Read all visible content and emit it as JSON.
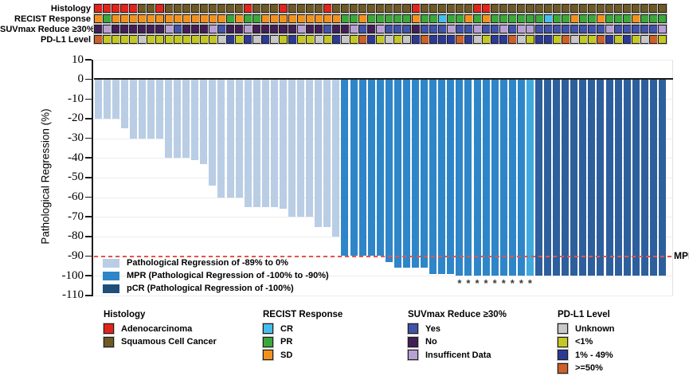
{
  "tracks": {
    "labels": [
      "Histology",
      "RECIST Response",
      "SUVmax Reduce ≥30%",
      "PD-L1 Level"
    ],
    "histology_seq": [
      "A",
      "A",
      "A",
      "A",
      "A",
      "S",
      "S",
      "A",
      "S",
      "S",
      "S",
      "S",
      "S",
      "S",
      "S",
      "S",
      "S",
      "A",
      "S",
      "S",
      "S",
      "A",
      "S",
      "S",
      "S",
      "S",
      "A",
      "S",
      "S",
      "S",
      "S",
      "S",
      "S",
      "S",
      "S",
      "S",
      "A",
      "S",
      "S",
      "S",
      "S",
      "S",
      "S",
      "A",
      "A",
      "S",
      "S",
      "S",
      "S",
      "S",
      "S",
      "S",
      "S",
      "S",
      "S",
      "S",
      "S",
      "S",
      "S",
      "S",
      "S",
      "S",
      "S",
      "S",
      "S"
    ],
    "recist_seq": [
      "S",
      "P",
      "S",
      "S",
      "S",
      "S",
      "S",
      "S",
      "S",
      "S",
      "S",
      "S",
      "S",
      "S",
      "S",
      "P",
      "S",
      "P",
      "P",
      "S",
      "S",
      "S",
      "S",
      "S",
      "S",
      "S",
      "S",
      "S",
      "P",
      "P",
      "S",
      "P",
      "P",
      "P",
      "P",
      "P",
      "S",
      "P",
      "P",
      "C",
      "P",
      "P",
      "S",
      "P",
      "S",
      "P",
      "P",
      "P",
      "P",
      "P",
      "P",
      "C",
      "P",
      "P",
      "S",
      "P",
      "P",
      "S",
      "P",
      "P",
      "P",
      "S",
      "P",
      "P",
      "P"
    ],
    "suvmax_seq": [
      "N",
      "I",
      "N",
      "N",
      "N",
      "N",
      "N",
      "N",
      "I",
      "Y",
      "N",
      "N",
      "N",
      "I",
      "Y",
      "N",
      "N",
      "I",
      "N",
      "N",
      "N",
      "N",
      "N",
      "I",
      "N",
      "N",
      "Y",
      "N",
      "N",
      "I",
      "Y",
      "N",
      "I",
      "Y",
      "Y",
      "Y",
      "N",
      "Y",
      "Y",
      "Y",
      "I",
      "Y",
      "Y",
      "I",
      "Y",
      "Y",
      "I",
      "Y",
      "I",
      "I",
      "Y",
      "Y",
      "Y",
      "Y",
      "Y",
      "Y",
      "Y",
      "Y",
      "I",
      "Y",
      "Y",
      "Y",
      "Y",
      "Y",
      "I"
    ],
    "pdl1_seq": [
      "H",
      "L",
      "L",
      "L",
      "L",
      "U",
      "L",
      "L",
      "L",
      "L",
      "L",
      "L",
      "L",
      "L",
      "U",
      "M",
      "L",
      "M",
      "U",
      "M",
      "U",
      "L",
      "M",
      "L",
      "L",
      "U",
      "L",
      "M",
      "U",
      "L",
      "H",
      "M",
      "L",
      "U",
      "L",
      "U",
      "M",
      "H",
      "M",
      "M",
      "M",
      "H",
      "M",
      "U",
      "L",
      "M",
      "M",
      "H",
      "U",
      "L",
      "M",
      "M",
      "L",
      "H",
      "U",
      "L",
      "L",
      "H",
      "M",
      "L",
      "M",
      "L",
      "U",
      "H",
      "L"
    ],
    "histology_colors": {
      "A": "#e3241b",
      "S": "#6f5a26"
    },
    "recist_colors": {
      "C": "#45beec",
      "P": "#3ba83a",
      "S": "#f2921d"
    },
    "suvmax_colors": {
      "Y": "#4053a8",
      "N": "#421e56",
      "I": "#b7a0d3"
    },
    "pdl1_colors": {
      "U": "#c8c8c8",
      "L": "#c4c824",
      "M": "#2c3a96",
      "H": "#ce6029"
    }
  },
  "chart_data": {
    "type": "bar",
    "title": "",
    "xlabel": "",
    "ylabel": "Pathological Regression (%)",
    "ylim": [
      -110,
      10
    ],
    "yticks": [
      10,
      0,
      -10,
      -20,
      -30,
      -40,
      -50,
      -60,
      -70,
      -80,
      -90,
      -100,
      -110
    ],
    "grid": true,
    "values": [
      -20,
      -20,
      -20,
      -25,
      -30,
      -30,
      -30,
      -30,
      -40,
      -40,
      -40,
      -41,
      -43,
      -54,
      -60,
      -60,
      -60,
      -65,
      -65,
      -65,
      -65,
      -66,
      -70,
      -70,
      -70,
      -75,
      -75,
      -80,
      -90,
      -90,
      -90,
      -90,
      -90,
      -93,
      -96,
      -96,
      -96,
      -96,
      -99,
      -99,
      -99,
      -100,
      -100,
      -100,
      -100,
      -100,
      -100,
      -100,
      -100,
      -100,
      -100,
      -100,
      -100,
      -100,
      -100,
      -100,
      -100,
      -100,
      -100,
      -100,
      -100,
      -100,
      -100,
      -100,
      -100
    ],
    "groups": [
      "reg",
      "reg",
      "reg",
      "reg",
      "reg",
      "reg",
      "reg",
      "reg",
      "reg",
      "reg",
      "reg",
      "reg",
      "reg",
      "reg",
      "reg",
      "reg",
      "reg",
      "reg",
      "reg",
      "reg",
      "reg",
      "reg",
      "reg",
      "reg",
      "reg",
      "reg",
      "reg",
      "reg",
      "mpr",
      "mpr",
      "mpr",
      "mpr",
      "mpr",
      "mpr",
      "mpr",
      "mpr",
      "mpr",
      "mpr",
      "mpr",
      "mpr",
      "mpr",
      "mpr",
      "mpr",
      "mpr",
      "mpr",
      "mpr",
      "mpr",
      "mpr",
      "mpr",
      "cr",
      "pcr",
      "pcr",
      "pcr",
      "pcr",
      "pcr",
      "pcr",
      "pcr",
      "pcr",
      "pcr",
      "pcr",
      "pcr",
      "pcr",
      "pcr",
      "pcr",
      "pcr"
    ],
    "group_colors": {
      "reg": "#b9cde5",
      "mpr": "#2e86c8",
      "cr": "#41a9de",
      "pcr": "#2e5f9d"
    },
    "asterisk_columns": [
      42,
      43,
      44,
      45,
      46,
      47,
      48,
      49,
      50
    ],
    "asterisk_symbol": "*",
    "mpr_line": {
      "y": -90,
      "label": "MPR",
      "color": "#e8524b"
    }
  },
  "plot_legend": [
    {
      "label": "Pathological Regression of -89% to 0%",
      "color": "#b9cde5"
    },
    {
      "label": "MPR (Pathological Regression of -100% to -90%)",
      "color": "#2e86c8"
    },
    {
      "label": "pCR (Pathological Regression of -100%)",
      "color": "#1f4e79"
    }
  ],
  "bottom_legends": [
    {
      "title": "Histology",
      "items": [
        {
          "label": "Adenocarcinoma",
          "color": "#e3241b"
        },
        {
          "label": "Squamous Cell Cancer",
          "color": "#6f5a26"
        }
      ]
    },
    {
      "title": "RECIST Response",
      "items": [
        {
          "label": "CR",
          "color": "#45beec"
        },
        {
          "label": "PR",
          "color": "#3ba83a"
        },
        {
          "label": "SD",
          "color": "#f2921d"
        }
      ]
    },
    {
      "title": "SUVmax Reduce ≥30%",
      "items": [
        {
          "label": "Yes",
          "color": "#4053a8"
        },
        {
          "label": "No",
          "color": "#421e56"
        },
        {
          "label": "Insufficent Data",
          "color": "#b7a0d3"
        }
      ]
    },
    {
      "title": "PD-L1 Level",
      "items": [
        {
          "label": "Unknown",
          "color": "#c8c8c8"
        },
        {
          "label": "<1%",
          "color": "#c4c824"
        },
        {
          "label": "1% - 49%",
          "color": "#2c3a96"
        },
        {
          "label": ">=50%",
          "color": "#ce6029"
        }
      ]
    }
  ]
}
